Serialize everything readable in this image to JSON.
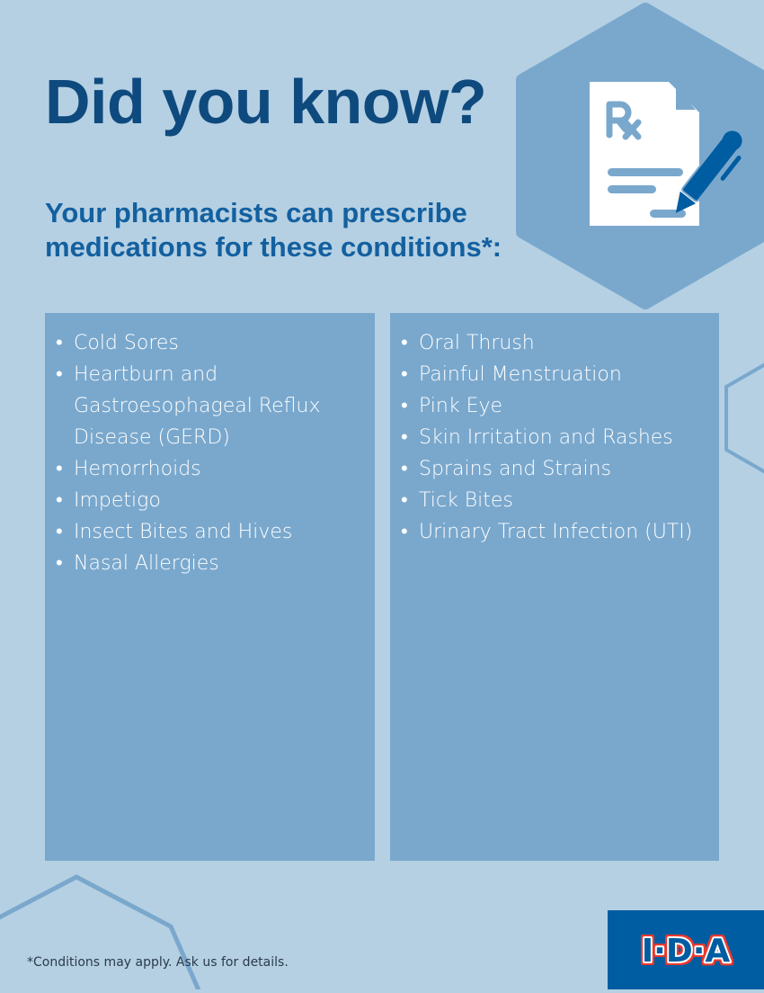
{
  "title": "Did you know?",
  "subtitle": "Your pharmacists can prescribe medications for these conditions*:",
  "conditions_left": [
    "Cold Sores",
    "Heartburn and Gastroesophageal Reflux Disease (GERD)",
    "Hemorrhoids",
    "Impetigo",
    "Insect Bites and Hives",
    "Nasal Allergies"
  ],
  "conditions_right": [
    "Oral Thrush",
    "Painful Menstruation",
    "Pink Eye",
    "Skin Irritation and Rashes",
    "Sprains and Strains",
    "Tick Bites",
    "Urinary Tract Infection (UTI)"
  ],
  "footnote": "*Conditions may apply. Ask us for details.",
  "logo": {
    "text": "I·D·A",
    "icon": "ida-logo"
  },
  "icon": "prescription-pen-icon",
  "colors": {
    "background": "#b5d0e3",
    "panel": "#7aa8cd",
    "title": "#0e4a7e",
    "subtitle": "#13609f",
    "logo_bg": "#005da2",
    "logo_red": "#e8392e"
  }
}
